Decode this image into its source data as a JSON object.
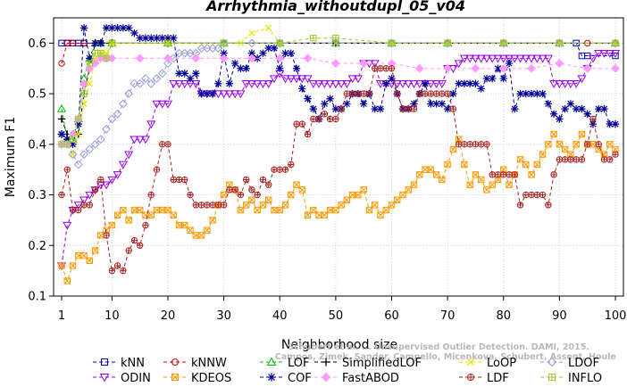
{
  "chart_data": {
    "type": "line",
    "title": "Arrhythmia_withoutdupl_05_v04",
    "xlabel": "Neighborhood size",
    "ylabel": "Maximum F1",
    "xlim": [
      1,
      100
    ],
    "ylim": [
      0.1,
      0.65
    ],
    "x_ticks": [
      1,
      10,
      20,
      30,
      40,
      50,
      60,
      70,
      80,
      90,
      100
    ],
    "y_ticks": [
      0.1,
      0.2,
      0.3,
      0.4,
      0.5,
      0.6
    ],
    "x_tick_labels": [
      "1",
      "10",
      "20",
      "30",
      "40",
      "50",
      "60",
      "70",
      "80",
      "90",
      "100"
    ],
    "y_tick_labels": [
      "0.1",
      "0.2",
      "0.3",
      "0.4",
      "0.5",
      "0.6"
    ],
    "grid": true,
    "legend_position": "bottom",
    "watermark": [
      "Schubert et al. ... Unsupervised Outlier Detection. DAMI, 2015.",
      "Campos, Zimek, Sander, Campello, Micenkova, Schubert, Assent, Houle"
    ],
    "series": [
      {
        "name": "kNN",
        "color": "#0000cc",
        "marker": "square",
        "x": [
          1,
          2,
          3,
          4,
          5,
          10,
          20,
          30,
          40,
          50,
          60,
          70,
          80,
          90,
          93,
          94,
          95,
          100
        ],
        "values": [
          0.6,
          0.6,
          0.6,
          0.6,
          0.6,
          0.6,
          0.6,
          0.6,
          0.6,
          0.6,
          0.6,
          0.6,
          0.6,
          0.6,
          0.6,
          0.575,
          0.575,
          0.575
        ]
      },
      {
        "name": "kNNW",
        "color": "#cc0000",
        "marker": "circle",
        "x": [
          1,
          2,
          3,
          5,
          8,
          20,
          50,
          80,
          95,
          100
        ],
        "values": [
          0.56,
          0.6,
          0.6,
          0.6,
          0.6,
          0.6,
          0.6,
          0.6,
          0.6,
          0.6
        ]
      },
      {
        "name": "LOF",
        "color": "#00bb00",
        "marker": "triangle-up",
        "x": [
          1,
          2,
          3,
          4,
          5,
          6,
          7,
          8,
          10,
          20,
          30,
          40,
          50,
          60,
          70,
          80,
          90,
          100
        ],
        "values": [
          0.47,
          0.41,
          0.41,
          0.45,
          0.53,
          0.57,
          0.6,
          0.6,
          0.6,
          0.6,
          0.6,
          0.6,
          0.6,
          0.6,
          0.6,
          0.6,
          0.6,
          0.6
        ]
      },
      {
        "name": "SimplifiedLOF",
        "color": "#000000",
        "marker": "plus",
        "x": [
          1,
          2,
          3,
          4,
          5,
          6,
          7,
          8,
          10,
          20,
          30,
          40,
          50,
          60,
          70,
          80,
          90,
          100
        ],
        "values": [
          0.45,
          0.42,
          0.42,
          0.42,
          0.5,
          0.55,
          0.6,
          0.6,
          0.6,
          0.6,
          0.6,
          0.6,
          0.6,
          0.6,
          0.6,
          0.6,
          0.6,
          0.6
        ]
      },
      {
        "name": "LoOP",
        "color": "#e6e600",
        "marker": "cross",
        "x": [
          1,
          2,
          3,
          4,
          5,
          6,
          7,
          8,
          9,
          10,
          20,
          33,
          35,
          38,
          40,
          50,
          60,
          70,
          80,
          90,
          100
        ],
        "values": [
          0.42,
          0.4,
          0.38,
          0.42,
          0.48,
          0.52,
          0.57,
          0.58,
          0.58,
          0.6,
          0.6,
          0.6,
          0.62,
          0.63,
          0.6,
          0.6,
          0.6,
          0.6,
          0.6,
          0.6,
          0.6
        ]
      },
      {
        "name": "LDOF",
        "color": "#9999dd",
        "marker": "diamond",
        "x": [
          1,
          2,
          3,
          4,
          5,
          6,
          7,
          8,
          9,
          10,
          11,
          12,
          13,
          14,
          15,
          16,
          17,
          18,
          19,
          20,
          21,
          22,
          23,
          24,
          25,
          26,
          27,
          28,
          29,
          30,
          35,
          40,
          50,
          60,
          70,
          80,
          90,
          100
        ],
        "values": [
          0.42,
          0.4,
          0.38,
          0.36,
          0.38,
          0.39,
          0.4,
          0.41,
          0.43,
          0.45,
          0.46,
          0.48,
          0.5,
          0.52,
          0.52,
          0.53,
          0.52,
          0.53,
          0.54,
          0.56,
          0.57,
          0.58,
          0.58,
          0.58,
          0.58,
          0.59,
          0.59,
          0.59,
          0.59,
          0.6,
          0.6,
          0.6,
          0.6,
          0.6,
          0.6,
          0.6,
          0.6,
          0.6
        ]
      },
      {
        "name": "ODIN",
        "color": "#9900ee",
        "marker": "triangle-down",
        "x": [
          1,
          2,
          3,
          4,
          5,
          6,
          7,
          8,
          9,
          10,
          11,
          12,
          13,
          14,
          15,
          16,
          17,
          18,
          19,
          20,
          21,
          22,
          23,
          24,
          25,
          26,
          27,
          28,
          29,
          30,
          31,
          32,
          33,
          34,
          35,
          36,
          37,
          38,
          39,
          40,
          41,
          42,
          43,
          44,
          45,
          46,
          47,
          48,
          49,
          50,
          51,
          52,
          53,
          54,
          55,
          56,
          57,
          58,
          59,
          60,
          61,
          62,
          63,
          64,
          65,
          66,
          67,
          68,
          69,
          70,
          71,
          72,
          73,
          74,
          75,
          76,
          77,
          78,
          79,
          80,
          81,
          82,
          83,
          84,
          85,
          86,
          87,
          88,
          89,
          90,
          91,
          92,
          93,
          94,
          95,
          96,
          97,
          98,
          99,
          100
        ],
        "values": [
          0.16,
          0.24,
          0.27,
          0.28,
          0.29,
          0.3,
          0.31,
          0.32,
          0.32,
          0.33,
          0.34,
          0.36,
          0.38,
          0.41,
          0.41,
          0.41,
          0.44,
          0.48,
          0.48,
          0.48,
          0.52,
          0.52,
          0.52,
          0.52,
          0.52,
          0.5,
          0.5,
          0.5,
          0.5,
          0.5,
          0.5,
          0.5,
          0.5,
          0.52,
          0.52,
          0.52,
          0.52,
          0.52,
          0.53,
          0.54,
          0.53,
          0.53,
          0.53,
          0.53,
          0.53,
          0.52,
          0.52,
          0.52,
          0.52,
          0.52,
          0.52,
          0.52,
          0.53,
          0.53,
          0.56,
          0.56,
          0.56,
          0.52,
          0.52,
          0.52,
          0.52,
          0.52,
          0.52,
          0.52,
          0.52,
          0.52,
          0.52,
          0.52,
          0.52,
          0.55,
          0.55,
          0.56,
          0.57,
          0.57,
          0.57,
          0.57,
          0.57,
          0.57,
          0.57,
          0.57,
          0.57,
          0.57,
          0.57,
          0.57,
          0.57,
          0.57,
          0.57,
          0.57,
          0.52,
          0.52,
          0.52,
          0.52,
          0.52,
          0.53,
          0.55,
          0.57,
          0.58,
          0.58,
          0.58,
          0.58
        ]
      },
      {
        "name": "KDEOS",
        "color": "#ff9900",
        "marker": "square-x",
        "x": [
          1,
          2,
          3,
          4,
          5,
          6,
          7,
          8,
          9,
          10,
          11,
          12,
          13,
          14,
          15,
          16,
          17,
          18,
          19,
          20,
          21,
          22,
          23,
          24,
          25,
          26,
          27,
          28,
          29,
          30,
          31,
          32,
          33,
          34,
          35,
          36,
          37,
          38,
          39,
          40,
          41,
          42,
          43,
          44,
          45,
          46,
          47,
          48,
          49,
          50,
          51,
          52,
          53,
          54,
          55,
          56,
          57,
          58,
          59,
          60,
          61,
          62,
          63,
          64,
          65,
          66,
          67,
          68,
          69,
          70,
          71,
          72,
          73,
          74,
          75,
          76,
          77,
          78,
          79,
          80,
          81,
          82,
          83,
          84,
          85,
          86,
          87,
          88,
          89,
          90,
          91,
          92,
          93,
          94,
          95,
          96,
          97,
          98,
          99,
          100
        ],
        "values": [
          0.16,
          0.13,
          0.16,
          0.18,
          0.18,
          0.17,
          0.19,
          0.22,
          0.23,
          0.24,
          0.26,
          0.27,
          0.25,
          0.27,
          0.27,
          0.26,
          0.26,
          0.27,
          0.27,
          0.27,
          0.26,
          0.24,
          0.24,
          0.23,
          0.22,
          0.22,
          0.23,
          0.25,
          0.28,
          0.3,
          0.32,
          0.31,
          0.27,
          0.28,
          0.29,
          0.27,
          0.28,
          0.29,
          0.27,
          0.27,
          0.28,
          0.3,
          0.32,
          0.31,
          0.26,
          0.27,
          0.26,
          0.26,
          0.27,
          0.27,
          0.28,
          0.29,
          0.3,
          0.3,
          0.31,
          0.27,
          0.28,
          0.26,
          0.27,
          0.28,
          0.29,
          0.3,
          0.31,
          0.32,
          0.34,
          0.35,
          0.35,
          0.34,
          0.33,
          0.36,
          0.39,
          0.41,
          0.36,
          0.32,
          0.34,
          0.33,
          0.31,
          0.32,
          0.33,
          0.35,
          0.32,
          0.34,
          0.37,
          0.36,
          0.34,
          0.36,
          0.38,
          0.4,
          0.42,
          0.4,
          0.39,
          0.38,
          0.4,
          0.42,
          0.4,
          0.4,
          0.39,
          0.38,
          0.4,
          0.39
        ]
      },
      {
        "name": "COF",
        "color": "#000099",
        "marker": "star",
        "x": [
          1,
          2,
          3,
          4,
          5,
          6,
          7,
          8,
          9,
          10,
          11,
          12,
          13,
          14,
          15,
          16,
          17,
          18,
          19,
          20,
          21,
          22,
          23,
          24,
          25,
          26,
          27,
          28,
          29,
          30,
          31,
          32,
          33,
          34,
          35,
          36,
          37,
          38,
          39,
          40,
          41,
          42,
          43,
          44,
          45,
          46,
          47,
          48,
          49,
          50,
          51,
          52,
          53,
          54,
          55,
          56,
          57,
          58,
          59,
          60,
          61,
          62,
          63,
          64,
          65,
          66,
          67,
          68,
          69,
          70,
          71,
          72,
          73,
          74,
          75,
          76,
          77,
          78,
          79,
          80,
          81,
          82,
          83,
          84,
          85,
          86,
          87,
          88,
          89,
          90,
          91,
          92,
          93,
          94,
          95,
          96,
          97,
          98,
          99,
          100
        ],
        "values": [
          0.42,
          0.41,
          0.4,
          0.44,
          0.63,
          0.57,
          0.6,
          0.6,
          0.63,
          0.63,
          0.63,
          0.63,
          0.63,
          0.62,
          0.61,
          0.61,
          0.61,
          0.61,
          0.61,
          0.61,
          0.61,
          0.54,
          0.54,
          0.53,
          0.54,
          0.5,
          0.5,
          0.5,
          0.52,
          0.58,
          0.52,
          0.56,
          0.55,
          0.55,
          0.58,
          0.57,
          0.58,
          0.59,
          0.59,
          0.55,
          0.58,
          0.58,
          0.55,
          0.51,
          0.49,
          0.47,
          0.45,
          0.48,
          0.49,
          0.47,
          0.47,
          0.48,
          0.5,
          0.5,
          0.48,
          0.5,
          0.47,
          0.47,
          0.52,
          0.53,
          0.5,
          0.47,
          0.47,
          0.48,
          0.5,
          0.52,
          0.48,
          0.48,
          0.48,
          0.47,
          0.5,
          0.52,
          0.52,
          0.52,
          0.52,
          0.51,
          0.53,
          0.53,
          0.55,
          0.53,
          0.56,
          0.47,
          0.5,
          0.5,
          0.5,
          0.5,
          0.5,
          0.48,
          0.46,
          0.45,
          0.47,
          0.48,
          0.47,
          0.47,
          0.46,
          0.44,
          0.47,
          0.47,
          0.44,
          0.44
        ]
      },
      {
        "name": "FastABOD",
        "color": "#ff99ff",
        "marker": "diamond-filled",
        "x": [
          1,
          2,
          3,
          4,
          5,
          6,
          7,
          8,
          9,
          10,
          15,
          20,
          25,
          30,
          35,
          40,
          45,
          50,
          55,
          60,
          65,
          70,
          75,
          80,
          85,
          90,
          95,
          100
        ],
        "values": [
          0.4,
          0.4,
          0.42,
          0.45,
          0.52,
          0.55,
          0.56,
          0.57,
          0.57,
          0.57,
          0.57,
          0.57,
          0.57,
          0.57,
          0.57,
          0.57,
          0.57,
          0.56,
          0.56,
          0.56,
          0.55,
          0.55,
          0.55,
          0.55,
          0.55,
          0.56,
          0.55,
          0.55
        ]
      },
      {
        "name": "LDF",
        "color": "#aa2222",
        "marker": "circle-plus",
        "x": [
          1,
          2,
          3,
          4,
          5,
          6,
          7,
          8,
          9,
          10,
          11,
          12,
          13,
          14,
          15,
          16,
          17,
          18,
          19,
          20,
          21,
          22,
          23,
          24,
          25,
          26,
          27,
          28,
          29,
          30,
          31,
          32,
          33,
          34,
          35,
          36,
          37,
          38,
          39,
          40,
          41,
          42,
          43,
          44,
          45,
          46,
          47,
          48,
          49,
          50,
          51,
          52,
          53,
          54,
          55,
          56,
          57,
          58,
          59,
          60,
          61,
          62,
          63,
          64,
          65,
          66,
          67,
          68,
          69,
          70,
          71,
          72,
          73,
          74,
          75,
          76,
          77,
          78,
          79,
          80,
          81,
          82,
          83,
          84,
          85,
          86,
          87,
          88,
          89,
          90,
          91,
          92,
          93,
          94,
          95,
          96,
          97,
          98,
          99,
          100
        ],
        "values": [
          0.3,
          0.35,
          0.27,
          0.27,
          0.28,
          0.28,
          0.31,
          0.33,
          0.22,
          0.15,
          0.16,
          0.15,
          0.19,
          0.21,
          0.2,
          0.24,
          0.3,
          0.35,
          0.4,
          0.4,
          0.33,
          0.33,
          0.33,
          0.3,
          0.28,
          0.28,
          0.28,
          0.28,
          0.28,
          0.28,
          0.31,
          0.31,
          0.3,
          0.33,
          0.31,
          0.3,
          0.33,
          0.32,
          0.35,
          0.35,
          0.35,
          0.36,
          0.44,
          0.44,
          0.42,
          0.45,
          0.45,
          0.46,
          0.45,
          0.45,
          0.47,
          0.5,
          0.5,
          0.5,
          0.5,
          0.5,
          0.55,
          0.55,
          0.55,
          0.55,
          0.5,
          0.47,
          0.47,
          0.47,
          0.5,
          0.5,
          0.5,
          0.5,
          0.5,
          0.5,
          0.47,
          0.4,
          0.4,
          0.4,
          0.4,
          0.4,
          0.4,
          0.34,
          0.34,
          0.34,
          0.34,
          0.34,
          0.28,
          0.3,
          0.3,
          0.3,
          0.3,
          0.28,
          0.34,
          0.37,
          0.37,
          0.37,
          0.37,
          0.37,
          0.4,
          0.45,
          0.4,
          0.37,
          0.37,
          0.38
        ]
      },
      {
        "name": "INFLO",
        "color": "#99cc33",
        "marker": "square-plus",
        "x": [
          1,
          2,
          3,
          4,
          5,
          6,
          7,
          8,
          9,
          10,
          20,
          30,
          40,
          46,
          50,
          60,
          70,
          80,
          90,
          100
        ],
        "values": [
          0.4,
          0.4,
          0.41,
          0.45,
          0.5,
          0.56,
          0.58,
          0.58,
          0.57,
          0.6,
          0.6,
          0.6,
          0.6,
          0.61,
          0.61,
          0.6,
          0.6,
          0.6,
          0.6,
          0.6
        ]
      }
    ]
  }
}
